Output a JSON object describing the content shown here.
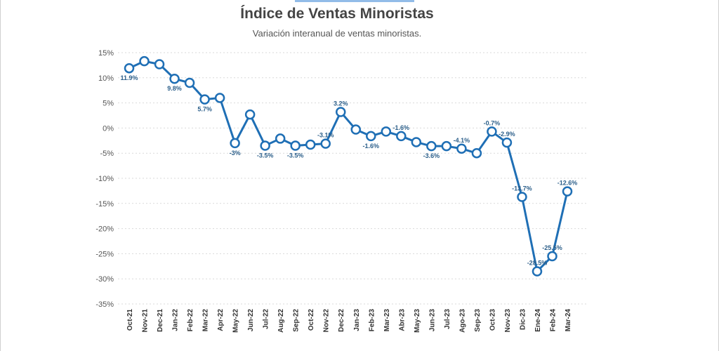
{
  "header": {
    "title": "Índice de Ventas Minoristas",
    "subtitle": "Variación interanual de ventas minoristas."
  },
  "colors": {
    "line": "#1f6fb5",
    "marker_fill": "#ffffff",
    "grid": "#d9d9d9",
    "label": "#2c5f8a"
  },
  "chart_data": {
    "type": "line",
    "title": "Índice de Ventas Minoristas",
    "subtitle": "Variación interanual de ventas minoristas.",
    "xlabel": "",
    "ylabel": "",
    "grid": true,
    "ylim": [
      -35,
      15
    ],
    "yticks": [
      15,
      10,
      5,
      0,
      -5,
      -10,
      -15,
      -20,
      -25,
      -30,
      -35
    ],
    "ytick_labels": [
      "15%",
      "10%",
      "5%",
      "0%",
      "-5%",
      "-10%",
      "-15%",
      "-20%",
      "-25%",
      "-30%",
      "-35%"
    ],
    "categories": [
      "Oct-21",
      "Nov-21",
      "Dec-21",
      "Jan-22",
      "Feb-22",
      "Mar-22",
      "Apr-22",
      "May-22",
      "Jun-22",
      "Jul-22",
      "Aug-22",
      "Sep-22",
      "Oct-22",
      "Nov-22",
      "Dec-22",
      "Jan-23",
      "Feb-23",
      "Mar-23",
      "Abr-23",
      "May-23",
      "Jun-23",
      "Jul-23",
      "Ago-23",
      "Sep-23",
      "Oct-23",
      "Nov-23",
      "Dic-23",
      "Ene-24",
      "Feb-24",
      "Mar-24"
    ],
    "series": [
      {
        "values": [
          11.9,
          13.3,
          12.7,
          9.8,
          9.0,
          5.7,
          6.0,
          -3.0,
          2.7,
          -3.5,
          -2.1,
          -3.5,
          -3.3,
          -3.1,
          3.2,
          -0.3,
          -1.6,
          -0.7,
          -1.6,
          -2.8,
          -3.6,
          -3.6,
          -4.1,
          -5.0,
          -0.7,
          -2.9,
          -13.7,
          -28.5,
          -25.5,
          -12.6
        ],
        "data_labels": [
          "11.9%",
          "",
          "",
          "9.8%",
          "",
          "5.7%",
          "",
          "-3%",
          "",
          "-3.5%",
          "",
          "-3.5%",
          "",
          "-3.1%",
          "3.2%",
          "",
          "-1.6%",
          "",
          "-1.6%",
          "",
          "-3.6%",
          "",
          "-4.1%",
          "",
          "-0.7%",
          "-2.9%",
          "-13.7%",
          "-28.5%",
          "-25.5%",
          "-12.6%"
        ]
      }
    ]
  }
}
